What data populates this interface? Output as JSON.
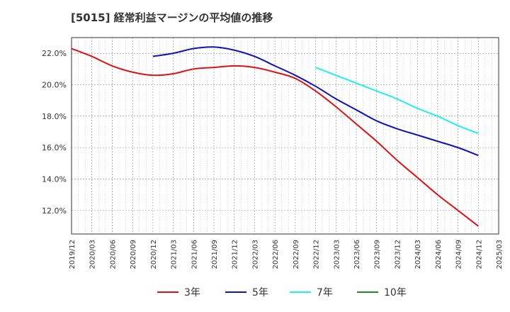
{
  "chart_data": {
    "type": "line",
    "title": "[5015]  経常利益マージンの平均値の推移",
    "ylim": [
      10.5,
      23.0
    ],
    "y_ticks": [
      12.0,
      14.0,
      16.0,
      18.0,
      20.0,
      22.0
    ],
    "y_tick_labels": [
      "12.0%",
      "14.0%",
      "16.0%",
      "18.0%",
      "20.0%",
      "22.0%"
    ],
    "x_ticks": [
      "2019/12",
      "2020/03",
      "2020/06",
      "2020/09",
      "2020/12",
      "2021/03",
      "2021/06",
      "2021/09",
      "2021/12",
      "2022/03",
      "2022/06",
      "2022/09",
      "2022/12",
      "2023/03",
      "2023/06",
      "2023/09",
      "2023/12",
      "2024/03",
      "2024/06",
      "2024/09",
      "2024/12",
      "2025/03"
    ],
    "grid": true,
    "legend_position": "bottom",
    "series": [
      {
        "name": "3年",
        "color": "#dd1111",
        "x": [
          "2019/12",
          "2020/03",
          "2020/06",
          "2020/09",
          "2020/12",
          "2021/03",
          "2021/06",
          "2021/09",
          "2021/12",
          "2022/03",
          "2022/06",
          "2022/09",
          "2022/12",
          "2023/03",
          "2023/06",
          "2023/09",
          "2023/12",
          "2024/03",
          "2024/06",
          "2024/09",
          "2024/12"
        ],
        "values": [
          22.3,
          21.8,
          21.2,
          20.8,
          20.6,
          20.7,
          21.0,
          21.1,
          21.2,
          21.1,
          20.8,
          20.4,
          19.6,
          18.6,
          17.5,
          16.4,
          15.2,
          14.1,
          13.0,
          12.0,
          11.0
        ]
      },
      {
        "name": "5年",
        "color": "#1111bb",
        "x": [
          "2020/12",
          "2021/03",
          "2021/06",
          "2021/09",
          "2021/12",
          "2022/03",
          "2022/06",
          "2022/09",
          "2022/12",
          "2023/03",
          "2023/06",
          "2023/09",
          "2023/12",
          "2024/03",
          "2024/06",
          "2024/09",
          "2024/12"
        ],
        "values": [
          21.8,
          22.0,
          22.3,
          22.4,
          22.2,
          21.8,
          21.2,
          20.6,
          19.9,
          19.1,
          18.4,
          17.7,
          17.2,
          16.8,
          16.4,
          16.0,
          15.5
        ]
      },
      {
        "name": "7年",
        "color": "#22eeee",
        "x": [
          "2022/12",
          "2023/03",
          "2023/06",
          "2023/09",
          "2023/12",
          "2024/03",
          "2024/06",
          "2024/09",
          "2024/12"
        ],
        "values": [
          21.1,
          20.6,
          20.1,
          19.6,
          19.1,
          18.5,
          18.0,
          17.4,
          16.9
        ]
      },
      {
        "name": "10年",
        "color": "#228822",
        "x": [],
        "values": []
      }
    ]
  }
}
